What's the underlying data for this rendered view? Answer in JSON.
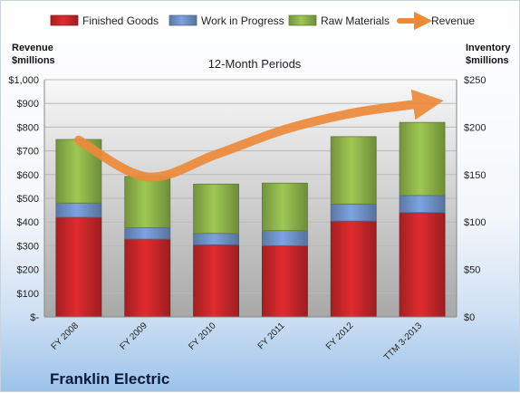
{
  "company": "Franklin Electric",
  "chart_data": {
    "type": "bar",
    "stacked": true,
    "subtitle": "12-Month Periods",
    "categories": [
      "FY 2008",
      "FY 2009",
      "FY 2010",
      "FY 2011",
      "FY 2012",
      "TTM 3-2013"
    ],
    "series": [
      {
        "name": "Finished Goods",
        "axis": "right",
        "color": "#c8262a",
        "values": [
          105,
          82,
          76,
          75,
          101,
          110
        ]
      },
      {
        "name": "Work in Progress",
        "axis": "right",
        "color": "#6f92c9",
        "values": [
          15,
          12,
          12,
          16,
          18,
          18
        ]
      },
      {
        "name": "Raw Materials",
        "axis": "right",
        "color": "#8db34a",
        "values": [
          67,
          54,
          52,
          50,
          71,
          77
        ]
      }
    ],
    "line": {
      "name": "Revenue",
      "axis": "left",
      "color": "#ed8a3a",
      "values": [
        745,
        590,
        685,
        790,
        860,
        900
      ]
    },
    "y_left": {
      "label_lines": [
        "Revenue",
        "$millions"
      ],
      "range": [
        0,
        1000
      ],
      "ticks": [
        "$-",
        "$100",
        "$200",
        "$300",
        "$400",
        "$500",
        "$600",
        "$700",
        "$800",
        "$900",
        "$1,000"
      ]
    },
    "y_right": {
      "label_lines": [
        "Inventory",
        "$millions"
      ],
      "range": [
        0,
        250
      ],
      "ticks": [
        "$0",
        "$50",
        "$100",
        "$150",
        "$200",
        "$250"
      ]
    },
    "grid": true,
    "legend_position": "top"
  }
}
